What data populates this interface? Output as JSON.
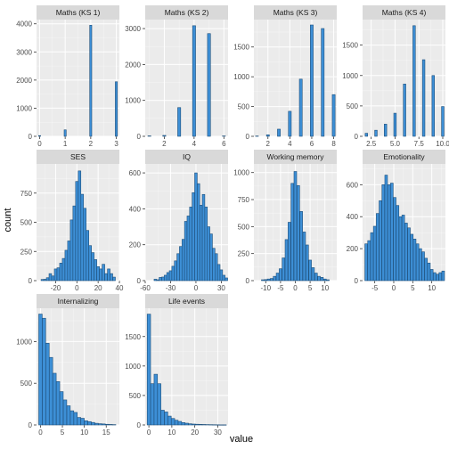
{
  "chart_data": {
    "type": "bar",
    "layout": "facet_wrap",
    "ncol": 4,
    "xlabel": "value",
    "ylabel": "count",
    "colors": {
      "panel_bg": "#ebebeb",
      "grid": "#ffffff",
      "strip_bg": "#d9d9d9",
      "bar_fill": "#3d8fd6",
      "bar_outline": "#1e4f7a"
    },
    "panels": [
      {
        "title": "Maths (KS 1)",
        "xlim": [
          -0.12,
          3.12
        ],
        "ylim": [
          0,
          4150
        ],
        "x_ticks": [
          0,
          1,
          2,
          3
        ],
        "y_ticks": [
          0,
          1000,
          2000,
          3000,
          4000
        ],
        "bar_width": 0.08,
        "bars": [
          [
            0.0,
            25
          ],
          [
            1.0,
            230
          ],
          [
            2.0,
            3950
          ],
          [
            3.0,
            1940
          ]
        ]
      },
      {
        "title": "Maths (KS 2)",
        "xlim": [
          0.72,
          6.28
        ],
        "ylim": [
          0,
          3250
        ],
        "x_ticks": [
          2,
          4,
          6
        ],
        "y_ticks": [
          0,
          1000,
          2000,
          3000
        ],
        "bar_width": 0.2,
        "bars": [
          [
            1.0,
            12
          ],
          [
            2.0,
            25
          ],
          [
            3.0,
            800
          ],
          [
            4.0,
            3080
          ],
          [
            5.0,
            2860
          ],
          [
            6.0,
            10
          ]
        ]
      },
      {
        "title": "Maths (KS 3)",
        "xlim": [
          0.72,
          8.28
        ],
        "ylim": [
          0,
          1960
        ],
        "x_ticks": [
          2,
          4,
          6,
          8
        ],
        "y_ticks": [
          0,
          500,
          1000,
          1500
        ],
        "bar_width": 0.26,
        "bars": [
          [
            1.0,
            5
          ],
          [
            2.0,
            25
          ],
          [
            3.0,
            120
          ],
          [
            4.0,
            420
          ],
          [
            5.0,
            960
          ],
          [
            6.0,
            1870
          ],
          [
            7.0,
            1810
          ],
          [
            8.0,
            700
          ]
        ]
      },
      {
        "title": "Maths (KS 4)",
        "xlim": [
          1.6,
          10.28
        ],
        "ylim": [
          0,
          1920
        ],
        "x_ticks": [
          2.5,
          5.0,
          7.5,
          10.0
        ],
        "x_tick_labels": [
          "2.5",
          "5.0",
          "7.5",
          "10.0"
        ],
        "y_ticks": [
          0,
          500,
          1000,
          1500
        ],
        "bar_width": 0.26,
        "bars": [
          [
            2.0,
            50
          ],
          [
            3.0,
            100
          ],
          [
            4.0,
            200
          ],
          [
            5.0,
            380
          ],
          [
            6.0,
            860
          ],
          [
            7.0,
            1820
          ],
          [
            8.0,
            1260
          ],
          [
            9.0,
            1000
          ],
          [
            10.0,
            490
          ]
        ]
      },
      {
        "title": "SES",
        "xlim": [
          -38,
          40
        ],
        "ylim": [
          0,
          1000
        ],
        "x_ticks": [
          -20,
          0,
          20,
          40
        ],
        "y_ticks": [
          0,
          250,
          500,
          750
        ],
        "bar_width": 2.45,
        "bars": [
          [
            -32.5,
            10
          ],
          [
            -30,
            12
          ],
          [
            -27.5,
            25
          ],
          [
            -25,
            60
          ],
          [
            -22.5,
            40
          ],
          [
            -20,
            100
          ],
          [
            -17.5,
            110
          ],
          [
            -15,
            150
          ],
          [
            -12.5,
            190
          ],
          [
            -10,
            260
          ],
          [
            -7.5,
            340
          ],
          [
            -5,
            520
          ],
          [
            -2.5,
            640
          ],
          [
            0,
            850
          ],
          [
            2.5,
            940
          ],
          [
            5,
            740
          ],
          [
            7.5,
            620
          ],
          [
            10,
            430
          ],
          [
            12.5,
            300
          ],
          [
            15,
            240
          ],
          [
            17.5,
            180
          ],
          [
            20,
            120
          ],
          [
            22.5,
            100
          ],
          [
            25,
            140
          ],
          [
            27.5,
            60
          ],
          [
            30,
            100
          ],
          [
            32.5,
            60
          ],
          [
            35,
            30
          ]
        ]
      },
      {
        "title": "IQ",
        "xlim": [
          -60,
          38
        ],
        "ylim": [
          0,
          650
        ],
        "x_ticks": [
          -60,
          -30,
          0,
          30
        ],
        "y_ticks": [
          0,
          200,
          400,
          600
        ],
        "bar_width": 3.0,
        "bars": [
          [
            -48,
            8
          ],
          [
            -45,
            5
          ],
          [
            -42,
            18
          ],
          [
            -39,
            20
          ],
          [
            -36,
            30
          ],
          [
            -33,
            45
          ],
          [
            -30,
            55
          ],
          [
            -27,
            80
          ],
          [
            -24,
            110
          ],
          [
            -21,
            150
          ],
          [
            -18,
            190
          ],
          [
            -15,
            230
          ],
          [
            -12,
            330
          ],
          [
            -9,
            360
          ],
          [
            -6,
            410
          ],
          [
            -3,
            490
          ],
          [
            0,
            600
          ],
          [
            3,
            540
          ],
          [
            6,
            420
          ],
          [
            9,
            480
          ],
          [
            12,
            410
          ],
          [
            15,
            300
          ],
          [
            18,
            260
          ],
          [
            21,
            180
          ],
          [
            24,
            150
          ],
          [
            27,
            90
          ],
          [
            30,
            60
          ],
          [
            33,
            30
          ],
          [
            36,
            15
          ]
        ]
      },
      {
        "title": "Working memory",
        "xlim": [
          -14,
          14
        ],
        "ylim": [
          0,
          1080
        ],
        "x_ticks": [
          -10,
          -5,
          0,
          5,
          10
        ],
        "y_ticks": [
          0,
          250,
          500,
          750,
          1000
        ],
        "bar_width": 0.9,
        "bars": [
          [
            -11,
            8
          ],
          [
            -10,
            10
          ],
          [
            -9,
            15
          ],
          [
            -8,
            20
          ],
          [
            -7,
            40
          ],
          [
            -6,
            70
          ],
          [
            -5,
            110
          ],
          [
            -4,
            210
          ],
          [
            -3,
            380
          ],
          [
            -2,
            540
          ],
          [
            -1,
            900
          ],
          [
            0,
            1010
          ],
          [
            1,
            880
          ],
          [
            2,
            640
          ],
          [
            3,
            450
          ],
          [
            4,
            330
          ],
          [
            5,
            190
          ],
          [
            6,
            120
          ],
          [
            7,
            70
          ],
          [
            8,
            40
          ],
          [
            9,
            30
          ],
          [
            10,
            15
          ],
          [
            11,
            8
          ]
        ]
      },
      {
        "title": "Emotionality",
        "xlim": [
          -8.2,
          13.6
        ],
        "ylim": [
          0,
          730
        ],
        "x_ticks": [
          -5,
          0,
          5,
          10
        ],
        "y_ticks": [
          0,
          200,
          400,
          600
        ],
        "bar_width": 0.7,
        "bars": [
          [
            -7.25,
            230
          ],
          [
            -6.5,
            250
          ],
          [
            -5.75,
            300
          ],
          [
            -5,
            340
          ],
          [
            -4.25,
            420
          ],
          [
            -3.5,
            500
          ],
          [
            -2.75,
            600
          ],
          [
            -2,
            660
          ],
          [
            -1.25,
            600
          ],
          [
            -0.5,
            610
          ],
          [
            0.25,
            520
          ],
          [
            1,
            470
          ],
          [
            1.75,
            400
          ],
          [
            2.5,
            410
          ],
          [
            3.25,
            360
          ],
          [
            4,
            330
          ],
          [
            4.75,
            290
          ],
          [
            5.5,
            260
          ],
          [
            6.25,
            230
          ],
          [
            7,
            200
          ],
          [
            7.75,
            180
          ],
          [
            8.5,
            140
          ],
          [
            9.25,
            110
          ],
          [
            10,
            70
          ],
          [
            10.75,
            50
          ],
          [
            11.5,
            40
          ],
          [
            12.25,
            50
          ],
          [
            13,
            60
          ]
        ]
      },
      {
        "title": "Internalizing",
        "xlim": [
          -0.9,
          18
        ],
        "ylim": [
          0,
          1400
        ],
        "x_ticks": [
          0,
          5,
          10,
          15
        ],
        "y_ticks": [
          0,
          500,
          1000
        ],
        "bar_width": 0.78,
        "bars": [
          [
            0,
            1330
          ],
          [
            0.8,
            1280
          ],
          [
            1.6,
            980
          ],
          [
            2.4,
            810
          ],
          [
            3.2,
            620
          ],
          [
            4.0,
            520
          ],
          [
            4.8,
            400
          ],
          [
            5.6,
            300
          ],
          [
            6.4,
            230
          ],
          [
            7.2,
            170
          ],
          [
            8.0,
            150
          ],
          [
            8.8,
            90
          ],
          [
            9.6,
            80
          ],
          [
            10.4,
            50
          ],
          [
            11.2,
            40
          ],
          [
            12.0,
            30
          ],
          [
            12.8,
            20
          ],
          [
            13.6,
            15
          ],
          [
            14.4,
            12
          ],
          [
            15.2,
            8
          ],
          [
            16.0,
            6
          ],
          [
            16.8,
            4
          ]
        ]
      },
      {
        "title": "Life events",
        "xlim": [
          -1.6,
          34.5
        ],
        "ylim": [
          0,
          1980
        ],
        "x_ticks": [
          0,
          10,
          20,
          30
        ],
        "y_ticks": [
          0,
          500,
          1000,
          1500
        ],
        "bar_width": 1.48,
        "bars": [
          [
            0,
            1880
          ],
          [
            1.5,
            700
          ],
          [
            3,
            860
          ],
          [
            4.5,
            700
          ],
          [
            6,
            250
          ],
          [
            7.5,
            220
          ],
          [
            9,
            150
          ],
          [
            10.5,
            110
          ],
          [
            12,
            80
          ],
          [
            13.5,
            60
          ],
          [
            15,
            40
          ],
          [
            16.5,
            30
          ],
          [
            18,
            20
          ],
          [
            19.5,
            15
          ],
          [
            21,
            12
          ],
          [
            22.5,
            10
          ],
          [
            24,
            8
          ],
          [
            25.5,
            6
          ],
          [
            27,
            5
          ],
          [
            28.5,
            4
          ],
          [
            30,
            3
          ],
          [
            31.5,
            2
          ],
          [
            33,
            2
          ]
        ]
      }
    ]
  }
}
